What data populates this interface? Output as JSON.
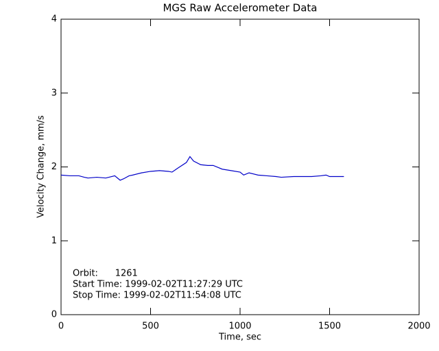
{
  "chart_data": {
    "type": "line",
    "title": "MGS Raw Accelerometer Data",
    "x_label": "Time, sec",
    "y_label": "Velocity Change, mm/s",
    "annotations": [
      "Orbit:      1261",
      "Start Time: 1999-02-02T11:27:29 UTC",
      "Stop Time: 1999-02-02T11:54:08 UTC"
    ],
    "x": [
      0,
      50,
      100,
      130,
      150,
      200,
      250,
      300,
      330,
      350,
      380,
      400,
      450,
      500,
      550,
      600,
      620,
      650,
      700,
      720,
      740,
      780,
      820,
      850,
      880,
      900,
      950,
      1000,
      1020,
      1050,
      1100,
      1150,
      1200,
      1230,
      1300,
      1350,
      1400,
      1450,
      1480,
      1500,
      1550,
      1580
    ],
    "series": [
      {
        "name": "Velocity Change",
        "color": "#0000c8",
        "values": [
          1.89,
          1.88,
          1.88,
          1.86,
          1.85,
          1.86,
          1.85,
          1.88,
          1.82,
          1.84,
          1.88,
          1.89,
          1.92,
          1.94,
          1.95,
          1.94,
          1.93,
          1.98,
          2.06,
          2.14,
          2.08,
          2.03,
          2.02,
          2.02,
          1.99,
          1.97,
          1.95,
          1.93,
          1.89,
          1.92,
          1.89,
          1.88,
          1.87,
          1.86,
          1.87,
          1.87,
          1.87,
          1.88,
          1.89,
          1.87,
          1.87,
          1.87
        ]
      }
    ],
    "xlim": [
      0,
      2000
    ],
    "xticks": [
      0,
      500,
      1000,
      1500,
      2000
    ],
    "ylim": [
      0,
      4
    ],
    "yticks": [
      0,
      1,
      2,
      3,
      4
    ],
    "grid": false
  }
}
